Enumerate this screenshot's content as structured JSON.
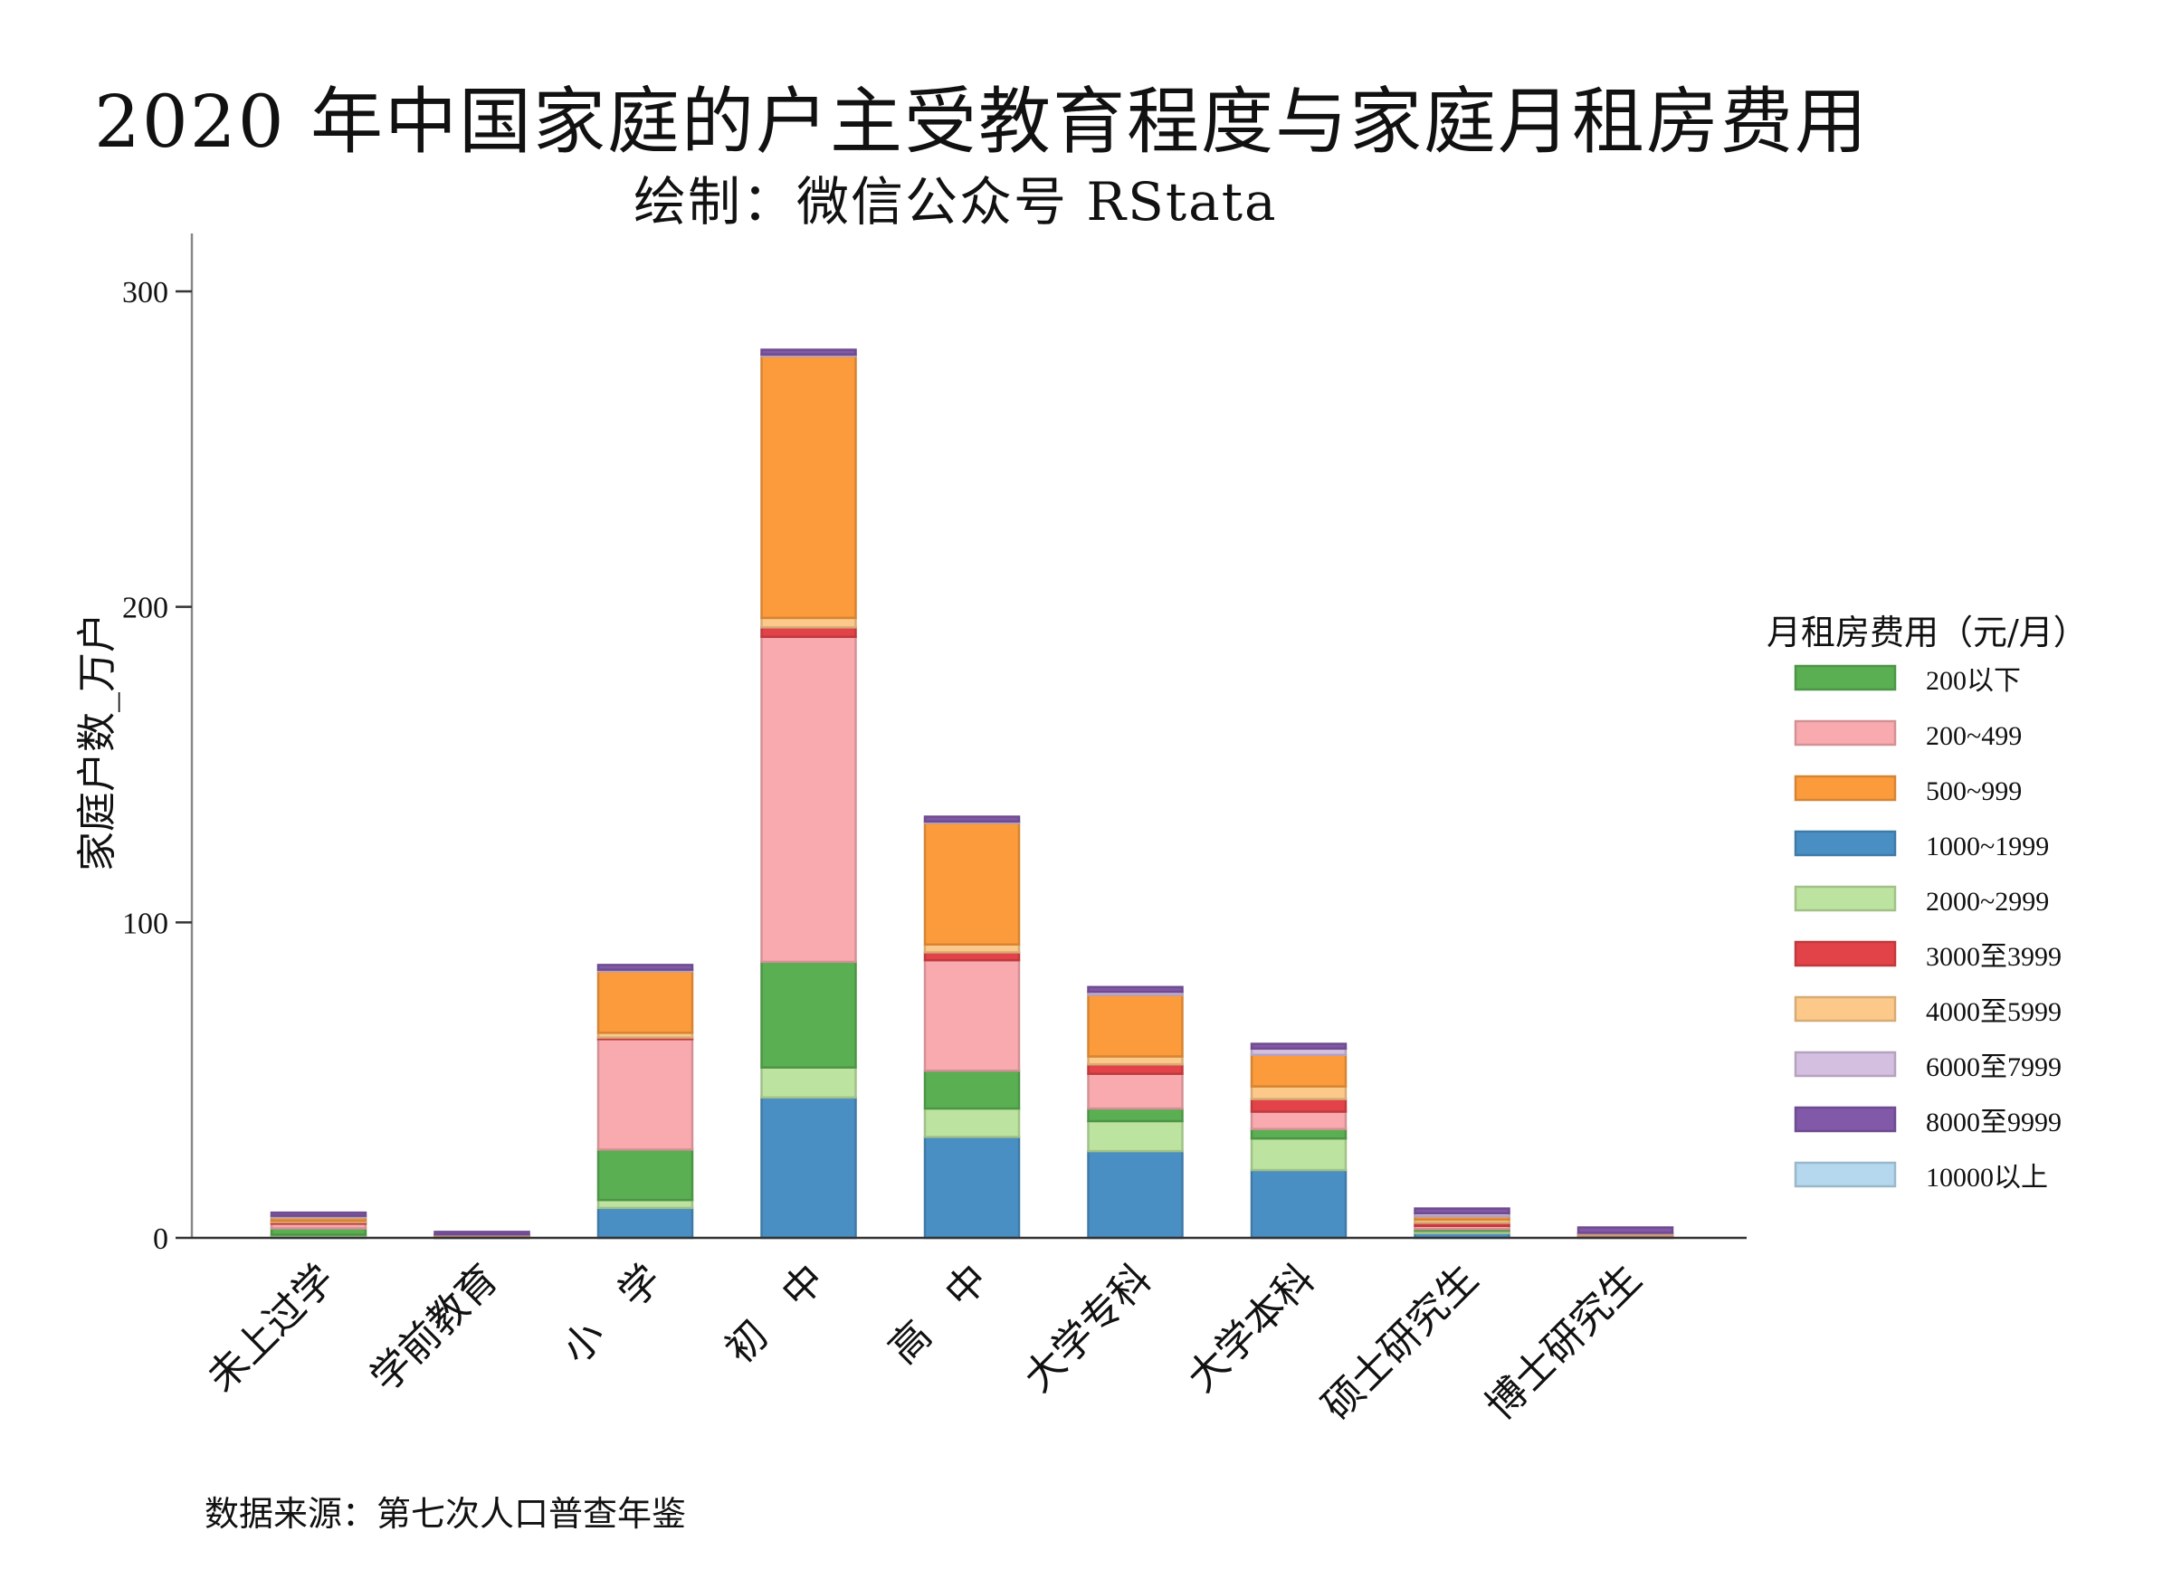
{
  "chart_data": {
    "type": "bar",
    "stacked": true,
    "title": "2020 年中国家庭的户主受教育程度与家庭月租房费用",
    "subtitle": "绘制：微信公众号 RStata",
    "caption": "数据来源：第七次人口普查年鉴",
    "xlabel": "",
    "ylabel": "家庭户数_万户",
    "ylim": [
      0,
      318
    ],
    "yticks": [
      0,
      100,
      200,
      300
    ],
    "legend_title": "月租房费用（元/月）",
    "legend_position": "right",
    "categories": [
      "未上过学",
      "学前教育",
      "小　学",
      "初　中",
      "高　中",
      "大学专科",
      "大学本科",
      "硕士研究生",
      "博士研究生"
    ],
    "series": [
      {
        "name": "1000~1999",
        "color": "#4a8fc4",
        "values": [
          0.5,
          0.1,
          9.5,
          44.5,
          32,
          27.5,
          21.5,
          1.5,
          0.2
        ]
      },
      {
        "name": "2000~2999",
        "color": "#bde3a0",
        "values": [
          0.5,
          0.1,
          2.5,
          9.5,
          9,
          9.5,
          10,
          0.8,
          0.2
        ]
      },
      {
        "name": "200以下",
        "color": "#5aaf52",
        "values": [
          2,
          0.2,
          16,
          33.5,
          12,
          4,
          3,
          0.5,
          0.1
        ]
      },
      {
        "name": "200~499",
        "color": "#f8aaaf",
        "values": [
          1.5,
          0.2,
          35,
          103,
          35,
          11,
          5.5,
          1,
          0.1
        ]
      },
      {
        "name": "3000至3999",
        "color": "#e24348",
        "values": [
          0.5,
          0.1,
          0.5,
          3,
          2.5,
          3,
          4,
          1,
          0.2
        ]
      },
      {
        "name": "4000至5999",
        "color": "#fcc98a",
        "values": [
          0.5,
          0.1,
          1.5,
          3,
          2.5,
          2.5,
          4,
          1,
          0.3
        ]
      },
      {
        "name": "500~999",
        "color": "#fc9b3c",
        "values": [
          1,
          0.2,
          19.5,
          83,
          38.5,
          19.5,
          10,
          1,
          0.2
        ]
      },
      {
        "name": "6000至7999",
        "color": "#d4bfe0",
        "values": [
          0.5,
          0.1,
          0.5,
          0.5,
          0.5,
          1,
          2,
          1,
          0.3
        ]
      },
      {
        "name": "8000至9999",
        "color": "#8258a8",
        "values": [
          1,
          0.8,
          1.5,
          1.5,
          1.5,
          1.5,
          1.5,
          1.5,
          1.7
        ]
      },
      {
        "name": "10000以上",
        "color": "#b5d8ee",
        "values": [
          0,
          0,
          0,
          0,
          0,
          0,
          0,
          0,
          0
        ]
      }
    ],
    "legend_order": [
      "200以下",
      "200~499",
      "500~999",
      "1000~1999",
      "2000~2999",
      "3000至3999",
      "4000至5999",
      "6000至7999",
      "8000至9999",
      "10000以上"
    ]
  }
}
